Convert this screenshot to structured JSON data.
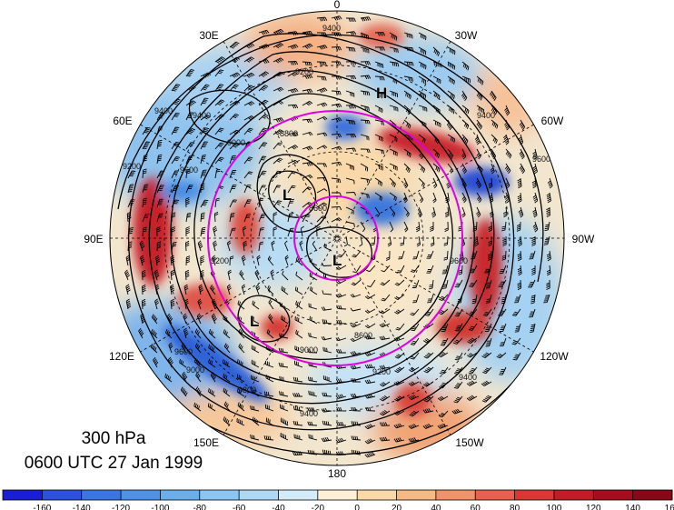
{
  "title": {
    "level": "300 hPa",
    "time": "0600 UTC 27 Jan 1999"
  },
  "longitude_labels": {
    "top": "0",
    "top_left": "30E",
    "top_right": "30W",
    "upper_left": "60E",
    "upper_right": "60W",
    "left": "90E",
    "right": "90W",
    "lower_left": "120E",
    "lower_right": "120W",
    "bottom_left": "150E",
    "bottom_right": "150W",
    "bottom": "180"
  },
  "pressure_centers": [
    {
      "id": "h1",
      "label": "H"
    },
    {
      "id": "l1",
      "label": "L"
    },
    {
      "id": "l2",
      "label": "L"
    },
    {
      "id": "l3",
      "label": "L"
    }
  ],
  "contour_labels": [
    "9400",
    "9200",
    "9400",
    "9000",
    "9400",
    "9200",
    "9600",
    "9200",
    "9600",
    "8800",
    "8600",
    "9000",
    "9200",
    "9400",
    "9400",
    "9600",
    "9800",
    "9400",
    "8600",
    "9000",
    "9600"
  ],
  "colorbar": {
    "ticks": [
      "-160",
      "-140",
      "-120",
      "-100",
      "-80",
      "-60",
      "-40",
      "-20",
      "0",
      "20",
      "40",
      "60",
      "80",
      "100",
      "120",
      "140",
      "160"
    ],
    "colors": [
      "#1a1fd0",
      "#2d52dc",
      "#3a75e0",
      "#4f93e6",
      "#6aaeec",
      "#8ac6f1",
      "#add9f5",
      "#d4ecf9",
      "#fdf0d7",
      "#f9d9a8",
      "#f5b985",
      "#f0926a",
      "#e8604f",
      "#d73a35",
      "#be1e27",
      "#a40e1e",
      "#870817"
    ]
  },
  "colors": {
    "ring": "#e000e0",
    "contour": "#000000",
    "warm": "#d0302f",
    "cool": "#3569d8"
  }
}
